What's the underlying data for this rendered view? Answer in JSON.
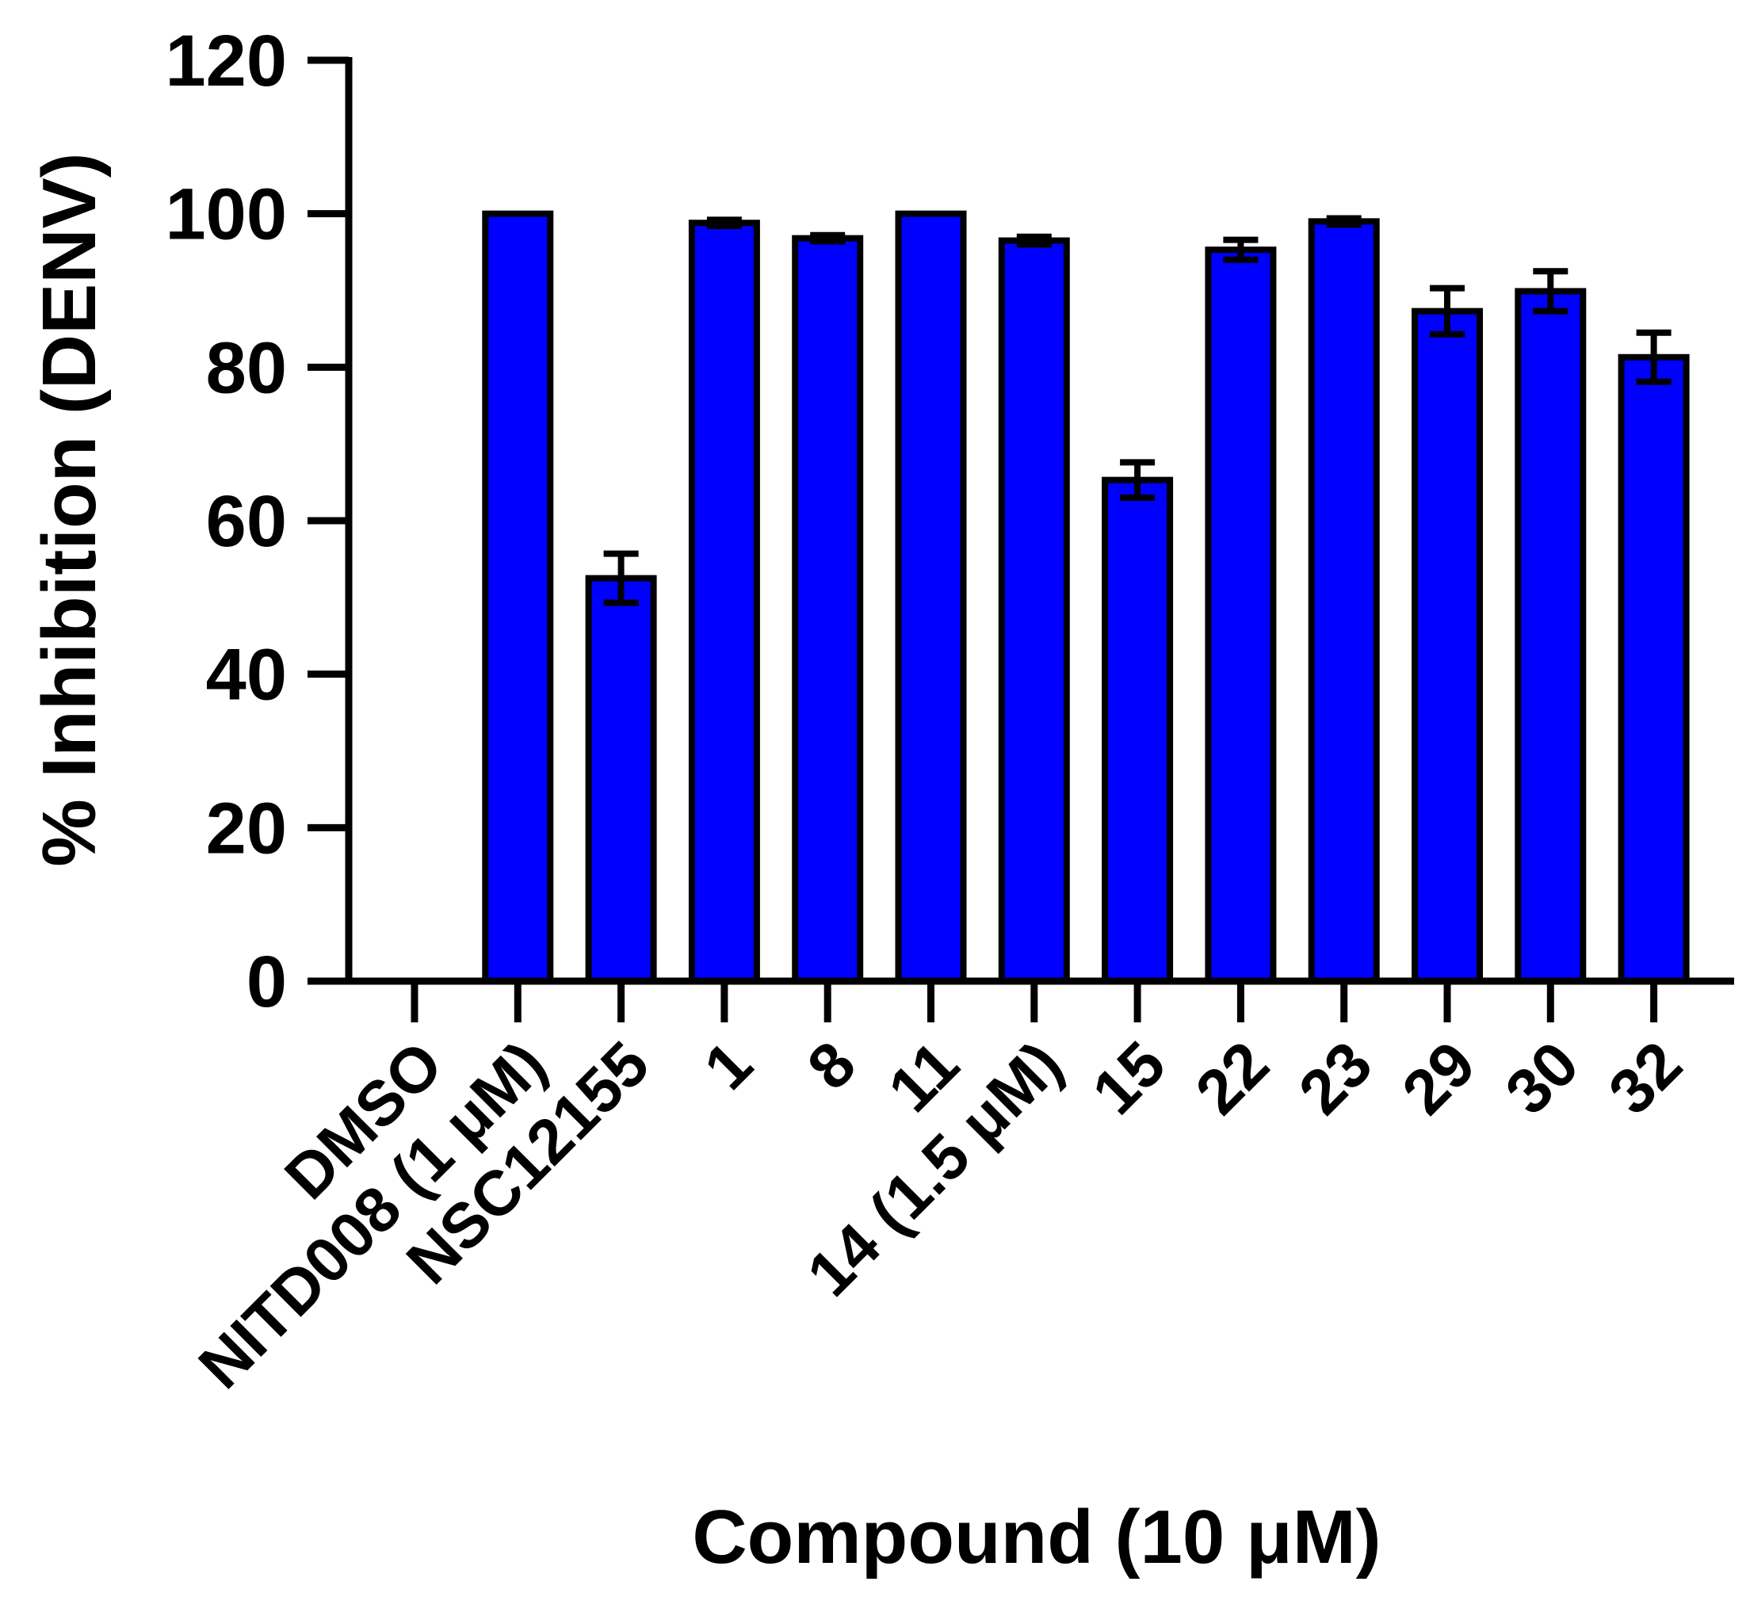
{
  "chart_data": {
    "type": "bar",
    "categories": [
      "DMSO",
      "NITD008 (1 μM)",
      "NSC12155",
      "1",
      "8",
      "11",
      "14 (1.5 μM)",
      "15",
      "22",
      "23",
      "29",
      "30",
      "32"
    ],
    "values": [
      0,
      100,
      52.5,
      98.8,
      96.8,
      100,
      96.5,
      65.3,
      95.3,
      99.0,
      87.3,
      89.9,
      81.3
    ],
    "errors": [
      0,
      0,
      3.2,
      0.4,
      0.4,
      0,
      0.5,
      2.3,
      1.3,
      0.4,
      3.0,
      2.6,
      3.2
    ],
    "xlabel": "Compound (10 μM)",
    "ylabel": "% Inhibition (DENV)",
    "ylim": [
      0,
      120
    ],
    "yticks": [
      0,
      20,
      40,
      60,
      80,
      100,
      120
    ],
    "bar_color": "#0000ff",
    "edge_color": "#000000",
    "grid": false
  }
}
